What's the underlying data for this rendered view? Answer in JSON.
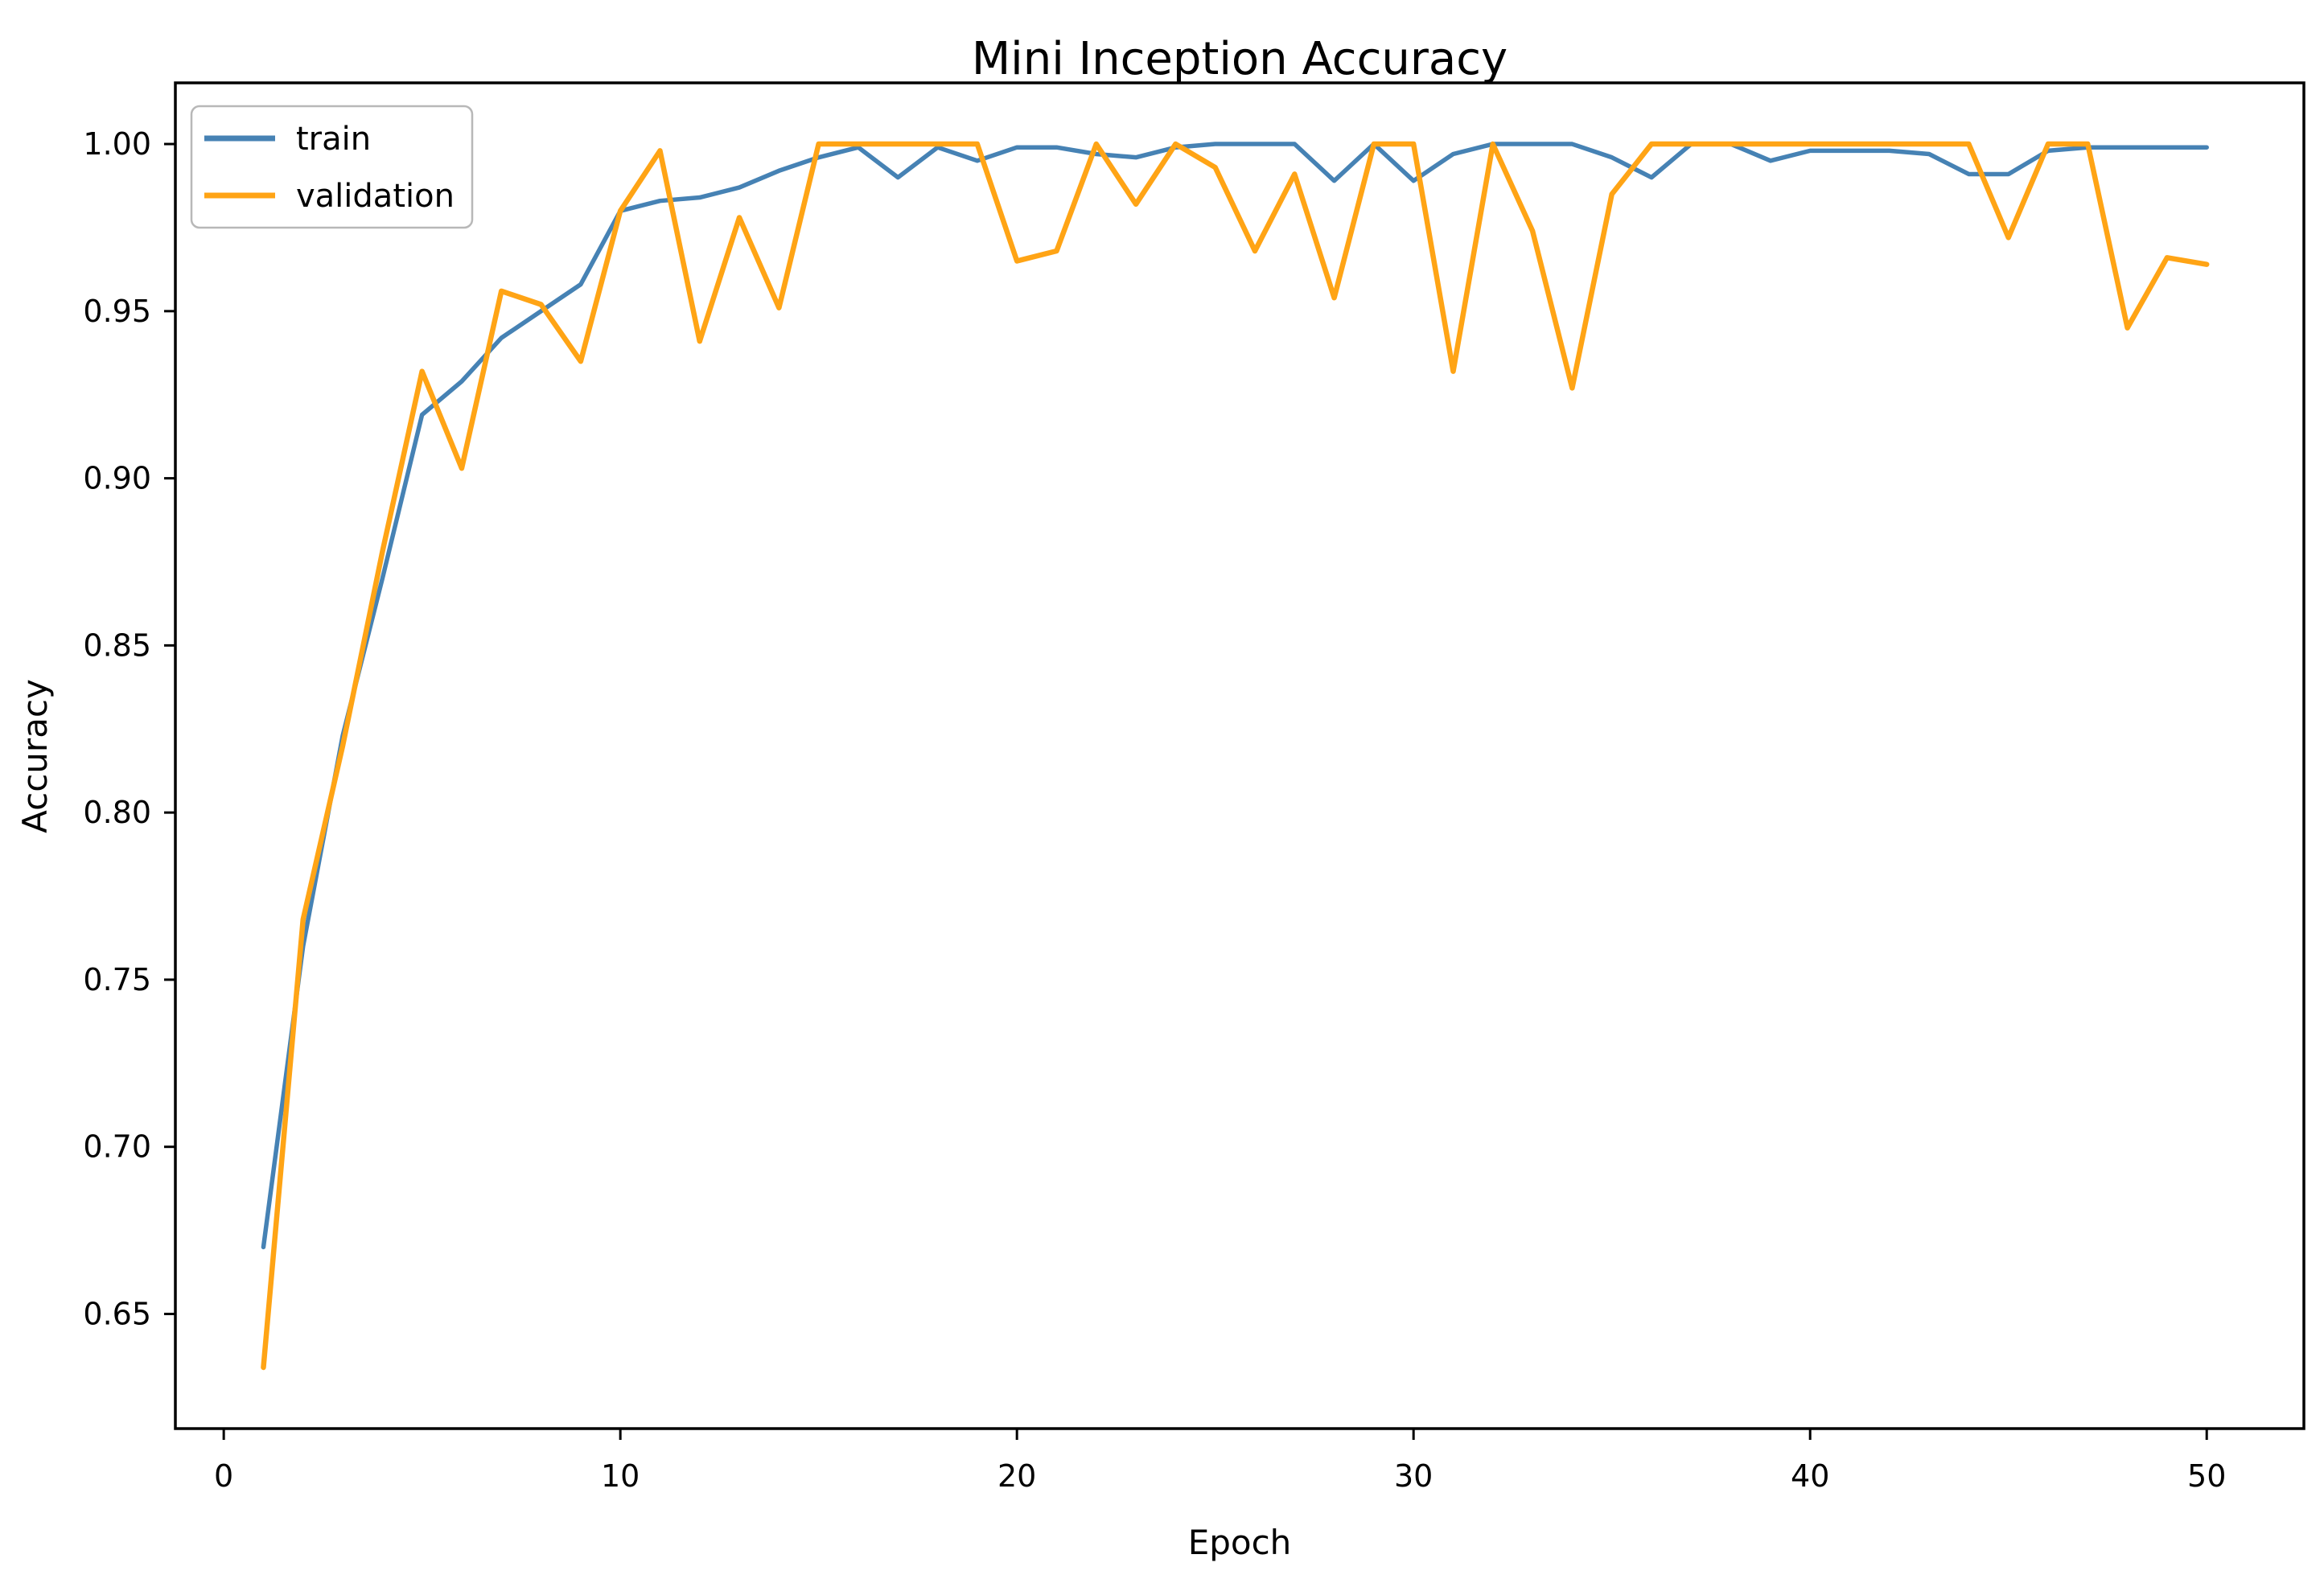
{
  "figure": {
    "background": "#ffffff",
    "title": "Mini Inception Accuracy"
  },
  "chart_data": {
    "type": "line",
    "title": "Mini Inception Accuracy",
    "xlabel": "Epoch",
    "ylabel": "Accuracy",
    "grid": false,
    "legend_position": "upper left",
    "x": [
      1,
      2,
      3,
      4,
      5,
      6,
      7,
      8,
      9,
      10,
      11,
      12,
      13,
      14,
      15,
      16,
      17,
      18,
      19,
      20,
      21,
      22,
      23,
      24,
      25,
      26,
      27,
      28,
      29,
      30,
      31,
      32,
      33,
      34,
      35,
      36,
      37,
      38,
      39,
      40,
      41,
      42,
      43,
      44,
      45,
      46,
      47,
      48,
      49,
      50
    ],
    "series": [
      {
        "name": "train",
        "color": "#4682B4",
        "stroke_width": 5.5,
        "values": [
          0.67,
          0.76,
          0.823,
          0.87,
          0.919,
          0.929,
          0.942,
          0.95,
          0.958,
          0.98,
          0.983,
          0.984,
          0.987,
          0.992,
          0.996,
          0.999,
          0.99,
          0.999,
          0.995,
          0.999,
          0.999,
          0.997,
          0.996,
          0.999,
          1.0,
          1.0,
          1.0,
          0.989,
          1.0,
          0.989,
          0.997,
          1.0,
          1.0,
          1.0,
          0.996,
          0.99,
          1.0,
          1.0,
          0.995,
          0.998,
          0.998,
          0.998,
          0.997,
          0.991,
          0.991,
          0.998,
          0.999,
          0.999,
          0.999,
          0.999
        ]
      },
      {
        "name": "validation",
        "color": "#FFA415",
        "stroke_width": 6.5,
        "values": [
          0.634,
          0.768,
          0.82,
          0.878,
          0.932,
          0.903,
          0.956,
          0.952,
          0.935,
          0.98,
          0.998,
          0.941,
          0.978,
          0.951,
          1.0,
          1.0,
          1.0,
          1.0,
          1.0,
          0.965,
          0.968,
          1.0,
          0.982,
          1.0,
          0.993,
          0.968,
          0.991,
          0.954,
          1.0,
          1.0,
          0.932,
          1.0,
          0.974,
          0.927,
          0.985,
          1.0,
          1.0,
          1.0,
          1.0,
          1.0,
          1.0,
          1.0,
          1.0,
          1.0,
          0.972,
          1.0,
          1.0,
          0.945,
          0.966,
          0.964
        ]
      }
    ],
    "xticks": [
      0,
      10,
      20,
      30,
      40,
      50
    ],
    "yticks": [
      1.0,
      0.95,
      0.9,
      0.85,
      0.8,
      0.75,
      0.7,
      0.65
    ],
    "xlim": [
      -1.22,
      52.45
    ],
    "ylim": [
      0.6157,
      1.0183
    ]
  }
}
